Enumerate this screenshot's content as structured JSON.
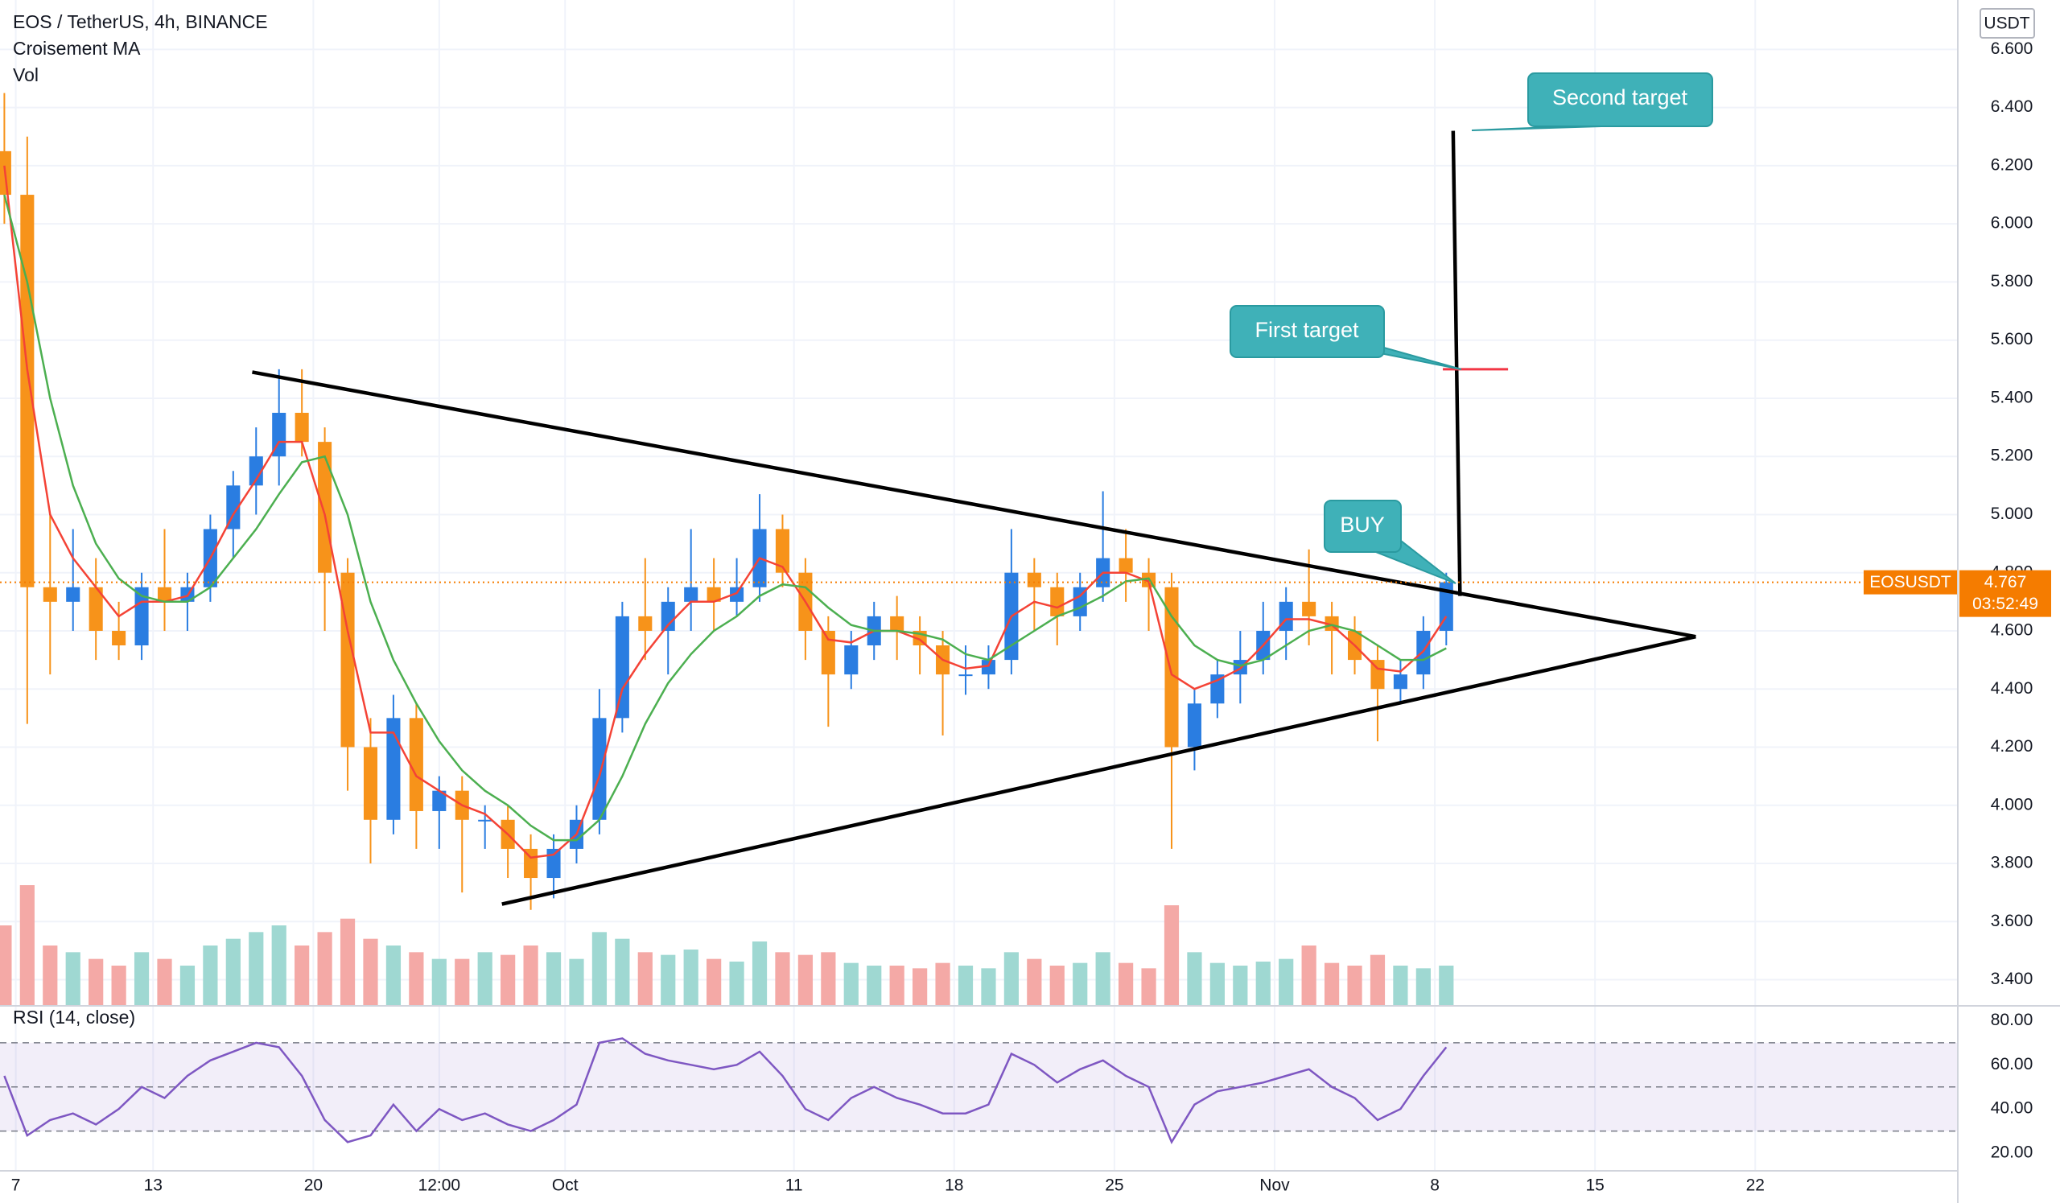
{
  "chart_data": [
    {
      "type": "candlestick",
      "title": "EOS / TetherUS, 4h, BINANCE",
      "indicators": [
        "Croisement MA",
        "Vol"
      ],
      "currency": "USDT",
      "symbol": "EOSUSDT",
      "countdown": "03:52:49",
      "x": [
        6.5,
        7.5,
        8.5,
        9.5,
        10.5,
        11.5,
        12.5,
        13.5,
        14.5,
        15.5,
        16.5,
        17.5,
        18.5,
        19.5,
        20.5,
        21.5,
        22.5,
        23.5,
        24.5,
        25.5,
        26.5,
        27.5,
        28.5,
        29.5,
        30.5,
        31.5,
        32.5,
        33.5,
        34.5,
        35.5,
        36.5,
        37.5,
        38.5,
        39.5,
        40.5,
        41.5,
        42.5,
        43.5,
        44.5,
        45.5,
        46.5,
        47.5,
        48.5,
        49.5,
        50.5,
        51.5,
        52.5,
        53.5,
        54.5,
        55.5,
        56.5,
        57.5,
        58.5,
        59.5,
        60.5,
        61.5,
        62.5,
        63.5,
        64.5,
        65.5,
        66.5,
        67.5,
        68.5,
        69.5
      ],
      "open": [
        6.25,
        6.1,
        4.75,
        4.7,
        4.75,
        4.6,
        4.55,
        4.75,
        4.7,
        4.75,
        4.95,
        5.1,
        5.2,
        5.35,
        5.25,
        4.8,
        4.2,
        3.95,
        4.3,
        3.98,
        4.05,
        3.95,
        3.95,
        3.85,
        3.75,
        3.85,
        3.95,
        4.3,
        4.65,
        4.6,
        4.7,
        4.75,
        4.7,
        4.75,
        4.95,
        4.8,
        4.6,
        4.45,
        4.55,
        4.65,
        4.6,
        4.55,
        4.45,
        4.45,
        4.5,
        4.8,
        4.75,
        4.65,
        4.75,
        4.85,
        4.8,
        4.75,
        4.2,
        4.35,
        4.45,
        4.5,
        4.6,
        4.7,
        4.65,
        4.6,
        4.5,
        4.4,
        4.45,
        4.6
      ],
      "high": [
        6.45,
        6.3,
        5.0,
        4.95,
        4.85,
        4.7,
        4.8,
        4.95,
        4.8,
        5.0,
        5.15,
        5.3,
        5.5,
        5.5,
        5.3,
        4.85,
        4.3,
        4.38,
        4.35,
        4.1,
        4.1,
        4.0,
        4.0,
        3.9,
        3.9,
        4.0,
        4.4,
        4.7,
        4.85,
        4.75,
        4.95,
        4.85,
        4.85,
        5.07,
        5.0,
        4.85,
        4.65,
        4.6,
        4.7,
        4.72,
        4.65,
        4.6,
        4.55,
        4.55,
        4.95,
        4.85,
        4.8,
        4.8,
        5.08,
        4.95,
        4.85,
        4.8,
        4.4,
        4.5,
        4.6,
        4.7,
        4.75,
        4.88,
        4.7,
        4.65,
        4.55,
        4.5,
        4.65,
        4.8
      ],
      "low": [
        6.0,
        4.28,
        4.45,
        4.6,
        4.5,
        4.5,
        4.5,
        4.6,
        4.6,
        4.7,
        4.85,
        5.0,
        5.1,
        5.2,
        4.6,
        4.05,
        3.8,
        3.9,
        3.85,
        3.85,
        3.7,
        3.85,
        3.75,
        3.64,
        3.68,
        3.8,
        3.9,
        4.25,
        4.5,
        4.45,
        4.6,
        4.6,
        4.65,
        4.7,
        4.75,
        4.5,
        4.27,
        4.4,
        4.5,
        4.5,
        4.45,
        4.24,
        4.38,
        4.4,
        4.45,
        4.6,
        4.55,
        4.6,
        4.7,
        4.7,
        4.6,
        3.85,
        4.12,
        4.3,
        4.35,
        4.45,
        4.5,
        4.55,
        4.45,
        4.45,
        4.22,
        4.35,
        4.4,
        4.55
      ],
      "close": [
        6.1,
        4.75,
        4.7,
        4.75,
        4.6,
        4.55,
        4.75,
        4.7,
        4.75,
        4.95,
        5.1,
        5.2,
        5.35,
        5.25,
        4.8,
        4.2,
        3.95,
        4.3,
        3.98,
        4.05,
        3.95,
        3.95,
        3.85,
        3.75,
        3.85,
        3.95,
        4.3,
        4.65,
        4.6,
        4.7,
        4.75,
        4.7,
        4.75,
        4.95,
        4.8,
        4.6,
        4.45,
        4.55,
        4.65,
        4.6,
        4.55,
        4.45,
        4.45,
        4.5,
        4.8,
        4.75,
        4.65,
        4.75,
        4.85,
        4.8,
        4.75,
        4.2,
        4.35,
        4.45,
        4.5,
        4.6,
        4.7,
        4.65,
        4.6,
        4.5,
        4.4,
        4.45,
        4.6,
        4.767
      ],
      "volume": [
        60,
        90,
        45,
        40,
        35,
        30,
        40,
        35,
        30,
        45,
        50,
        55,
        60,
        45,
        55,
        65,
        50,
        45,
        40,
        35,
        35,
        40,
        38,
        45,
        40,
        35,
        55,
        50,
        40,
        38,
        42,
        35,
        33,
        48,
        40,
        38,
        40,
        32,
        30,
        30,
        28,
        32,
        30,
        28,
        40,
        35,
        30,
        32,
        40,
        32,
        28,
        75,
        40,
        32,
        30,
        33,
        35,
        45,
        32,
        30,
        38,
        30,
        28,
        30
      ],
      "up_color": "#2a7de1",
      "down_color": "#f7931a",
      "volume_up_color": "#9fd8d2",
      "volume_down_color": "#f4a9a6",
      "ma_fast": {
        "color": "#f44336",
        "values": [
          6.2,
          5.5,
          5.0,
          4.85,
          4.75,
          4.65,
          4.7,
          4.7,
          4.72,
          4.85,
          5.0,
          5.12,
          5.25,
          5.25,
          5.0,
          4.6,
          4.25,
          4.25,
          4.1,
          4.05,
          4.0,
          3.97,
          3.9,
          3.82,
          3.83,
          3.9,
          4.1,
          4.4,
          4.52,
          4.62,
          4.7,
          4.7,
          4.73,
          4.85,
          4.82,
          4.7,
          4.57,
          4.56,
          4.6,
          4.6,
          4.57,
          4.5,
          4.47,
          4.48,
          4.65,
          4.7,
          4.68,
          4.72,
          4.8,
          4.8,
          4.77,
          4.45,
          4.4,
          4.43,
          4.47,
          4.55,
          4.64,
          4.64,
          4.62,
          4.55,
          4.47,
          4.46,
          4.53,
          4.65
        ]
      },
      "ma_slow": {
        "color": "#4caf50",
        "values": [
          6.1,
          5.8,
          5.4,
          5.1,
          4.9,
          4.78,
          4.72,
          4.7,
          4.7,
          4.75,
          4.85,
          4.95,
          5.07,
          5.18,
          5.2,
          5.0,
          4.7,
          4.5,
          4.35,
          4.22,
          4.12,
          4.05,
          4.0,
          3.93,
          3.88,
          3.88,
          3.95,
          4.1,
          4.28,
          4.42,
          4.52,
          4.6,
          4.65,
          4.72,
          4.76,
          4.75,
          4.68,
          4.62,
          4.6,
          4.6,
          4.59,
          4.57,
          4.52,
          4.5,
          4.55,
          4.6,
          4.65,
          4.68,
          4.72,
          4.77,
          4.78,
          4.65,
          4.55,
          4.5,
          4.48,
          4.5,
          4.55,
          4.6,
          4.62,
          4.6,
          4.55,
          4.5,
          4.5,
          4.54
        ]
      },
      "xlim": [
        6.31,
        91.85
      ],
      "ylim": [
        3.31,
        6.77
      ],
      "yticks": [
        {
          "value": 3.4,
          "label": "3.400"
        },
        {
          "value": 3.6,
          "label": "3.600"
        },
        {
          "value": 3.8,
          "label": "3.800"
        },
        {
          "value": 4.0,
          "label": "4.000"
        },
        {
          "value": 4.2,
          "label": "4.200"
        },
        {
          "value": 4.4,
          "label": "4.400"
        },
        {
          "value": 4.6,
          "label": "4.600"
        },
        {
          "value": 4.8,
          "label": "4.800"
        },
        {
          "value": 5.0,
          "label": "5.000"
        },
        {
          "value": 5.2,
          "label": "5.200"
        },
        {
          "value": 5.4,
          "label": "5.400"
        },
        {
          "value": 5.6,
          "label": "5.600"
        },
        {
          "value": 5.8,
          "label": "5.800"
        },
        {
          "value": 6.0,
          "label": "6.000"
        },
        {
          "value": 6.2,
          "label": "6.200"
        },
        {
          "value": 6.4,
          "label": "6.400"
        },
        {
          "value": 6.6,
          "label": "6.600"
        }
      ],
      "grid": true,
      "annotations": {
        "triangle_upper": [
          [
            17.33,
            5.49
          ],
          [
            80.4,
            4.58
          ]
        ],
        "triangle_lower": [
          [
            28.24,
            3.66
          ],
          [
            80.4,
            4.58
          ]
        ],
        "target_line": [
          [
            70.1,
            4.72
          ],
          [
            69.8,
            6.32
          ]
        ],
        "first_target_mark": [
          [
            69.35,
            5.5
          ],
          [
            72.2,
            5.5
          ]
        ],
        "callouts": [
          "Second target",
          "First target",
          "BUY"
        ]
      }
    },
    {
      "type": "line",
      "title": "RSI (14, close)",
      "color": "#7e57c2",
      "values": [
        55,
        28,
        35,
        38,
        33,
        40,
        50,
        45,
        55,
        62,
        66,
        70,
        68,
        55,
        35,
        25,
        28,
        42,
        30,
        40,
        35,
        38,
        33,
        30,
        35,
        42,
        70,
        72,
        65,
        62,
        60,
        58,
        60,
        66,
        55,
        40,
        35,
        45,
        50,
        45,
        42,
        38,
        38,
        42,
        65,
        60,
        52,
        58,
        62,
        55,
        50,
        25,
        42,
        48,
        50,
        52,
        55,
        58,
        50,
        45,
        35,
        40,
        55,
        68
      ],
      "levels": [
        30,
        50,
        70
      ],
      "ylim": [
        12,
        86
      ],
      "yticks": [
        {
          "value": 20,
          "label": "20.00"
        },
        {
          "value": 40,
          "label": "40.00"
        },
        {
          "value": 60,
          "label": "60.00"
        },
        {
          "value": 80,
          "label": "80.00"
        }
      ],
      "xticks": [
        7,
        13,
        20,
        {
          "value": 25.5,
          "label": "12:00"
        },
        {
          "value": 31,
          "label": "Oct"
        },
        {
          "value": 41,
          "label": "11"
        },
        {
          "value": 48,
          "label": "18"
        },
        {
          "value": 55,
          "label": "25"
        },
        {
          "value": 62,
          "label": "Nov"
        },
        {
          "value": 69,
          "label": "8"
        },
        {
          "value": 76,
          "label": "15"
        },
        {
          "value": 83,
          "label": "22"
        }
      ]
    }
  ]
}
